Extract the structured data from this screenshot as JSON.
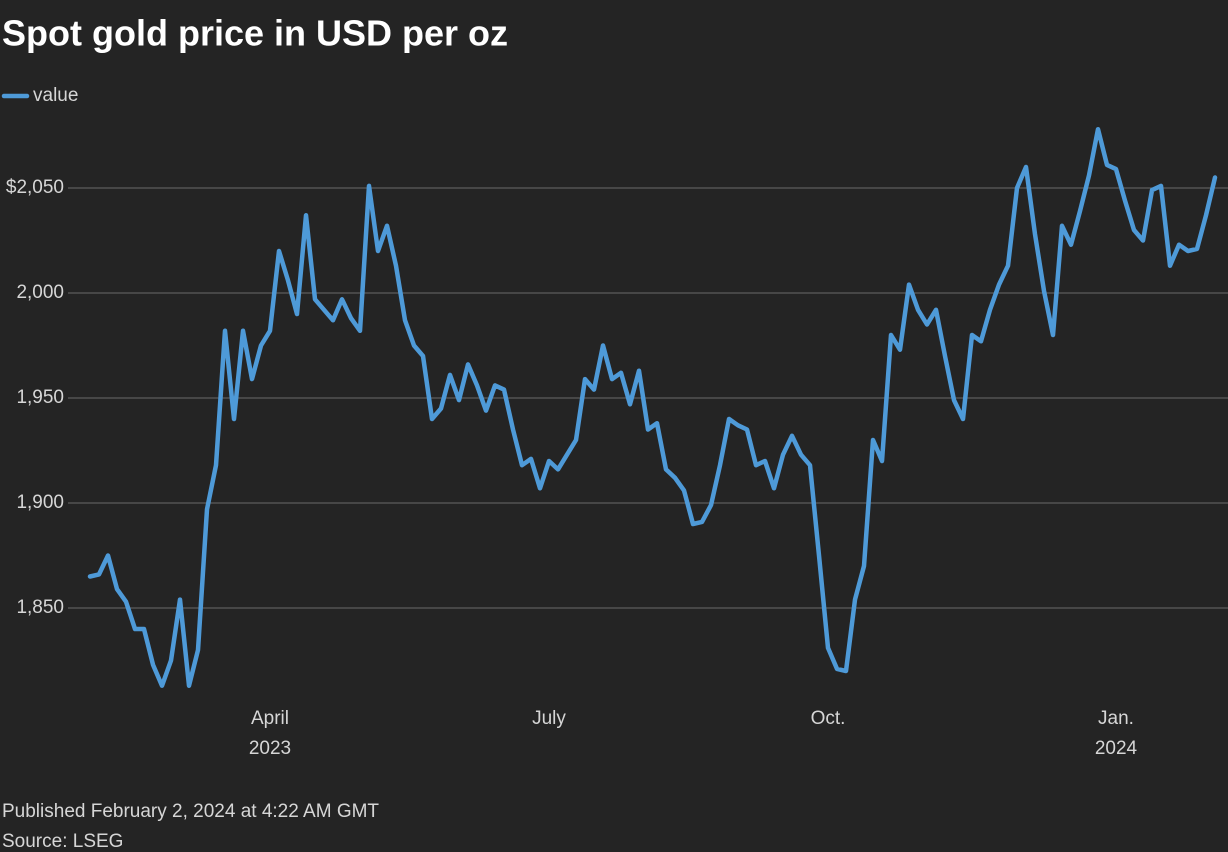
{
  "chart_data": {
    "type": "line",
    "title": "Spot gold price in USD per oz",
    "published": "Published February 2, 2024 at 4:22 AM GMT",
    "source": "Source: LSEG",
    "categories": [
      null,
      null,
      null,
      null,
      null,
      null,
      null,
      null,
      null,
      null,
      null,
      null,
      null,
      null,
      null,
      null,
      null,
      null,
      null,
      null,
      "April\n2023",
      null,
      null,
      null,
      null,
      null,
      null,
      null,
      null,
      null,
      null,
      null,
      null,
      null,
      null,
      null,
      null,
      null,
      null,
      null,
      null,
      null,
      null,
      null,
      null,
      null,
      null,
      null,
      null,
      null,
      null,
      "July",
      null,
      null,
      null,
      null,
      null,
      null,
      null,
      null,
      null,
      null,
      null,
      null,
      null,
      null,
      null,
      null,
      null,
      null,
      null,
      null,
      null,
      null,
      null,
      null,
      null,
      null,
      null,
      null,
      null,
      null,
      "Oct.",
      null,
      null,
      null,
      null,
      null,
      null,
      null,
      null,
      null,
      null,
      null,
      null,
      null,
      null,
      null,
      null,
      null,
      null,
      null,
      null,
      null,
      null,
      null,
      null,
      null,
      null,
      null,
      null,
      null,
      null,
      null,
      "Jan.\n2024",
      null,
      null,
      null,
      null,
      null,
      null,
      null,
      null,
      null,
      null,
      null
    ],
    "series": [
      {
        "name": "value",
        "color": "#4e9ad8",
        "values": [
          1865,
          1866,
          1875,
          1859,
          1853,
          1840,
          1840,
          1823,
          1813,
          1825,
          1854,
          1813,
          1830,
          1897,
          1918,
          1982,
          1940,
          1982,
          1959,
          1975,
          1982,
          2020,
          2006,
          1990,
          2037,
          1997,
          1992,
          1987,
          1997,
          1988,
          1982,
          2051,
          2020,
          2032,
          2013,
          1987,
          1975,
          1970,
          1940,
          1945,
          1961,
          1949,
          1966,
          1956,
          1944,
          1956,
          1954,
          1935,
          1918,
          1921,
          1907,
          1920,
          1916,
          1923,
          1930,
          1959,
          1954,
          1975,
          1959,
          1962,
          1947,
          1963,
          1935,
          1938,
          1916,
          1912,
          1906,
          1890,
          1891,
          1899,
          1918,
          1940,
          1937,
          1935,
          1918,
          1920,
          1907,
          1923,
          1932,
          1923,
          1918,
          1875,
          1831,
          1821,
          1820,
          1854,
          1870,
          1930,
          1920,
          1980,
          1973,
          2004,
          1992,
          1985,
          1992,
          1970,
          1949,
          1940,
          1980,
          1977,
          1992,
          2004,
          2013,
          2050,
          2060,
          2028,
          2001,
          1980,
          2032,
          2023,
          2039,
          2056,
          2078,
          2061,
          2059,
          2044,
          2030,
          2025,
          2049,
          2051,
          2013,
          2023,
          2020,
          2021,
          2037,
          2055
        ]
      }
    ],
    "ylim": [
      1805,
      2088
    ],
    "yticks": [
      {
        "value": 1850,
        "label": "1,850"
      },
      {
        "value": 1900,
        "label": "1,900"
      },
      {
        "value": 1950,
        "label": "1,950"
      },
      {
        "value": 2000,
        "label": "2,000"
      },
      {
        "value": 2050,
        "label": "$2,050"
      }
    ],
    "grid": true
  }
}
